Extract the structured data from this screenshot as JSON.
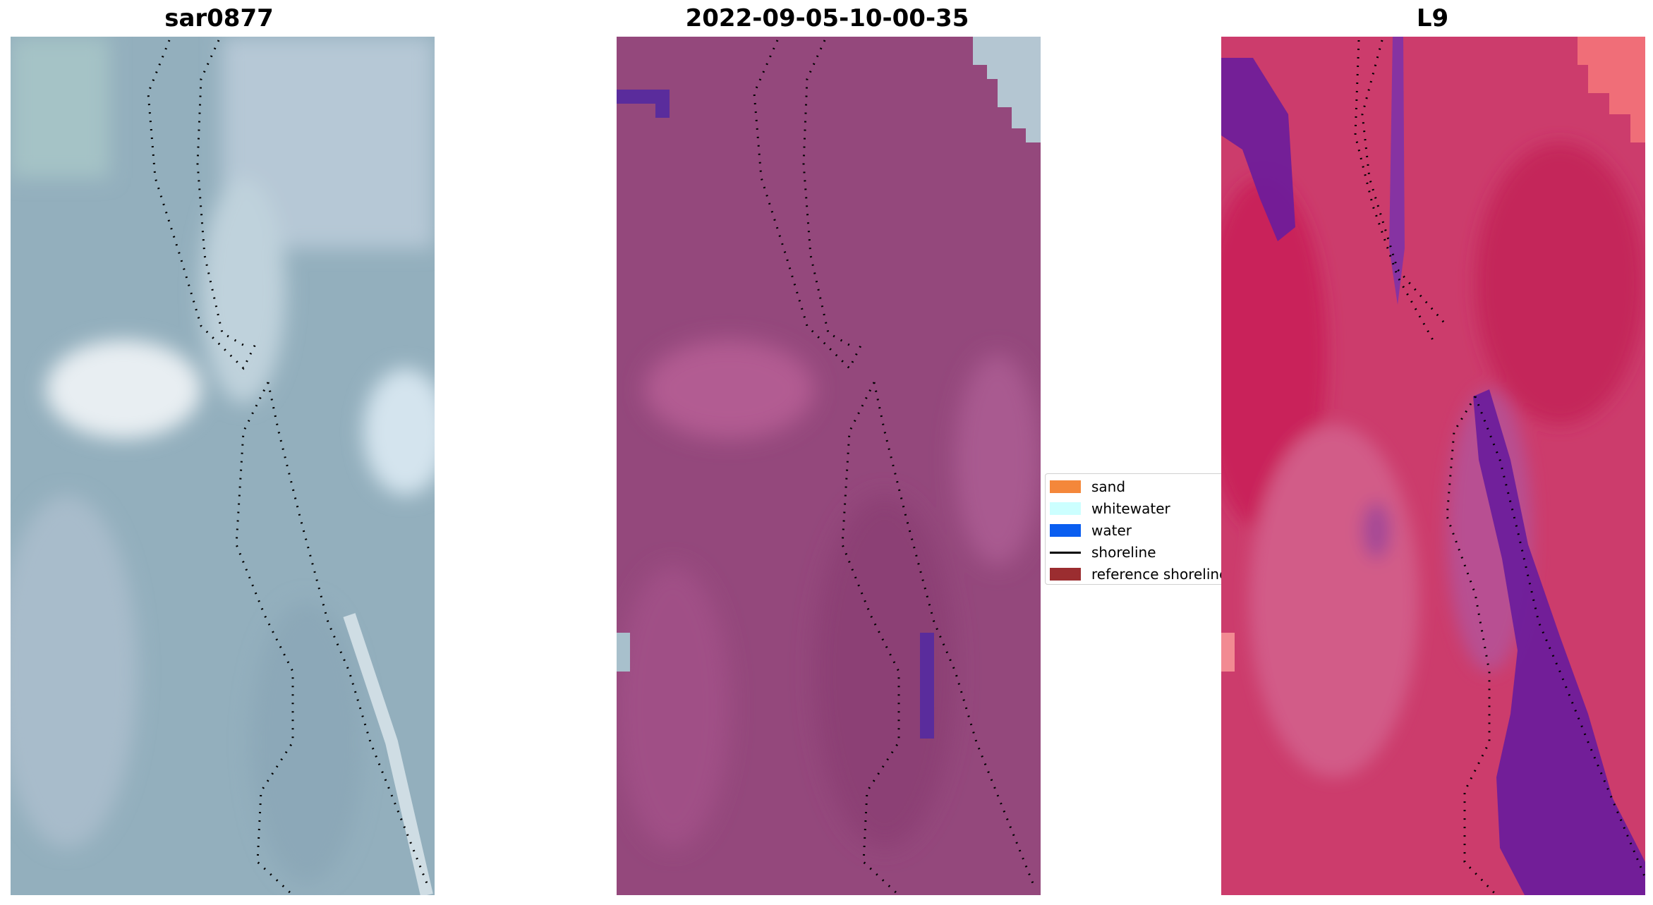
{
  "panels": [
    {
      "title": "sar0877"
    },
    {
      "title": "2022-09-05-10-00-35"
    },
    {
      "title": "L9"
    }
  ],
  "legend": {
    "items": [
      {
        "label": "sand",
        "kind": "patch",
        "color": "#f4873a"
      },
      {
        "label": "whitewater",
        "kind": "patch",
        "color": "#ccffff"
      },
      {
        "label": "water",
        "kind": "patch",
        "color": "#0a5ef0"
      },
      {
        "label": "shoreline",
        "kind": "line",
        "color": "#000000"
      },
      {
        "label": "reference shoreline",
        "kind": "patch",
        "color": "#9b2d30"
      }
    ]
  },
  "colors": {
    "rgb_base": "#93afbd",
    "classified_base": "#94487c",
    "classified_water": "#5a2c9c",
    "mndwi_base": "#cc3c6c",
    "mndwi_water": "#6a1c9c"
  }
}
